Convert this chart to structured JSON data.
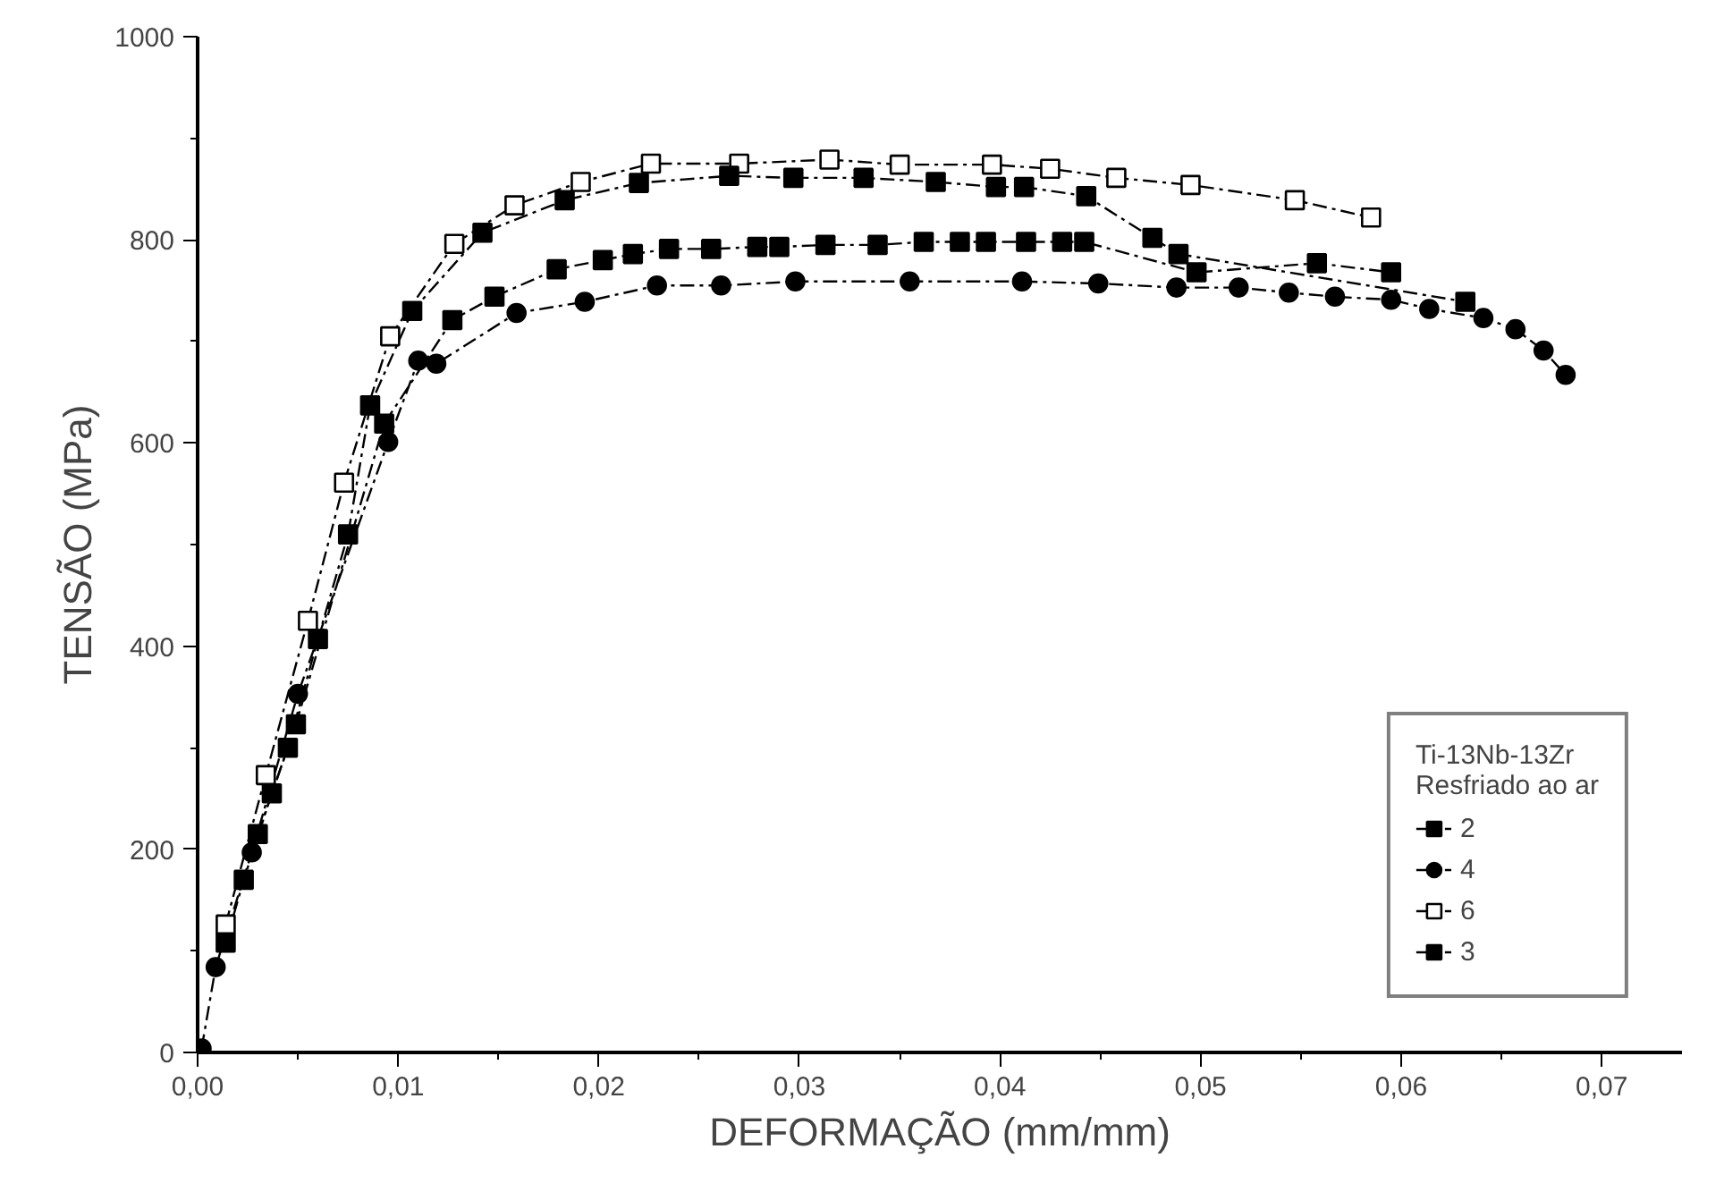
{
  "chart_data": {
    "type": "line",
    "xlabel": "DEFORMAÇÃO (mm/mm)",
    "ylabel": "TENSÃO (MPa)",
    "legend_title": "Ti-13Nb-13Zr\nResfriado ao ar",
    "legend": "bottom right",
    "grid": false,
    "line_style": "dashed",
    "xlim": [
      0,
      0.074
    ],
    "ylim": [
      0,
      1000
    ],
    "xticks": [
      {
        "value": 0,
        "label": "0,00"
      },
      {
        "value": 0.01,
        "label": "0,01"
      },
      {
        "value": 0.02,
        "label": "0,02"
      },
      {
        "value": 0.03,
        "label": "0,03"
      },
      {
        "value": 0.04,
        "label": "0,04"
      },
      {
        "value": 0.05,
        "label": "0,05"
      },
      {
        "value": 0.06,
        "label": "0,06"
      },
      {
        "value": 0.07,
        "label": "0,07"
      }
    ],
    "yticks": [
      0,
      200,
      400,
      600,
      800,
      1000
    ],
    "series": [
      {
        "name": "2",
        "color": "#000000",
        "marker": "square",
        "x": [
          0.0014,
          0.0023,
          0.0037,
          0.0049,
          0.0093,
          0.0127,
          0.0148,
          0.0179,
          0.0202,
          0.0217,
          0.0235,
          0.0256,
          0.0279,
          0.029,
          0.0313,
          0.0339,
          0.0362,
          0.038,
          0.0393,
          0.0413,
          0.0431,
          0.0442,
          0.0498,
          0.0558,
          0.0595
        ],
        "values": [
          108,
          170,
          255,
          323,
          619,
          721,
          744,
          771,
          780,
          786,
          791,
          791,
          793,
          793,
          795,
          795,
          798,
          798,
          798,
          798,
          798,
          798,
          768,
          777,
          768
        ]
      },
      {
        "name": "4",
        "color": "#000000",
        "marker": "circle",
        "x": [
          0.0002,
          0.0009,
          0.0027,
          0.005,
          0.0095,
          0.011,
          0.0119,
          0.0159,
          0.0193,
          0.0229,
          0.0261,
          0.0298,
          0.0355,
          0.0411,
          0.0449,
          0.0488,
          0.0519,
          0.0544,
          0.0567,
          0.0595,
          0.0614,
          0.0641,
          0.0657,
          0.0671,
          0.0682
        ],
        "values": [
          4,
          84,
          197,
          353,
          601,
          681,
          678,
          728,
          739,
          755,
          755,
          759,
          759,
          759,
          757,
          753,
          753,
          748,
          744,
          741,
          732,
          723,
          712,
          691,
          667
        ]
      },
      {
        "name": "6",
        "color": "#000000",
        "marker": "square_open",
        "x": [
          0.0014,
          0.0034,
          0.0055,
          0.0073,
          0.0096,
          0.0128,
          0.0158,
          0.0191,
          0.0226,
          0.027,
          0.0315,
          0.035,
          0.0396,
          0.0425,
          0.0458,
          0.0495,
          0.0547,
          0.0585
        ],
        "values": [
          126,
          273,
          425,
          561,
          705,
          796,
          834,
          857,
          875,
          875,
          879,
          874,
          874,
          870,
          861,
          854,
          839,
          822
        ]
      },
      {
        "name": "3",
        "color": "#000000",
        "marker": "square",
        "x": [
          0.003,
          0.0045,
          0.006,
          0.0075,
          0.0086,
          0.0107,
          0.0142,
          0.0183,
          0.022,
          0.0265,
          0.0297,
          0.0332,
          0.0368,
          0.0398,
          0.0412,
          0.0443,
          0.0476,
          0.0489,
          0.0632
        ],
        "values": [
          215,
          300,
          407,
          510,
          637,
          730,
          807,
          839,
          856,
          863,
          861,
          861,
          857,
          852,
          852,
          843,
          802,
          786,
          739
        ]
      }
    ]
  }
}
